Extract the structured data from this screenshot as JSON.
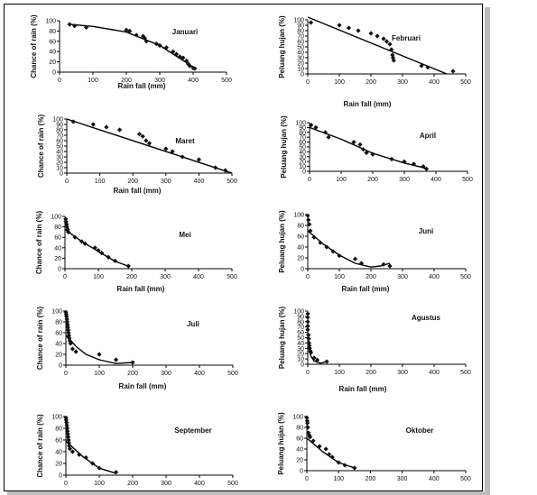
{
  "chart_data": [
    {
      "type": "scatter",
      "month": "Januari",
      "xlabel": "Rain fall (mm)",
      "ylabel": "Chance of rain (%)",
      "xticks": [
        "0",
        "100",
        "200",
        "300",
        "400",
        "500"
      ],
      "yticks": [
        "0",
        "20",
        "40",
        "60",
        "80",
        "100"
      ],
      "xlim": [
        0,
        500
      ],
      "ylim": [
        0,
        100
      ],
      "points": [
        [
          30,
          93
        ],
        [
          45,
          90
        ],
        [
          80,
          87
        ],
        [
          200,
          82
        ],
        [
          210,
          80
        ],
        [
          230,
          72
        ],
        [
          250,
          70
        ],
        [
          255,
          66
        ],
        [
          260,
          60
        ],
        [
          290,
          55
        ],
        [
          300,
          52
        ],
        [
          320,
          48
        ],
        [
          340,
          40
        ],
        [
          350,
          35
        ],
        [
          360,
          30
        ],
        [
          370,
          28
        ],
        [
          380,
          22
        ],
        [
          385,
          16
        ],
        [
          390,
          12
        ],
        [
          400,
          8
        ],
        [
          405,
          7
        ]
      ],
      "trend": [
        [
          30,
          93
        ],
        [
          100,
          89
        ],
        [
          200,
          78
        ],
        [
          300,
          52
        ],
        [
          400,
          10
        ]
      ]
    },
    {
      "type": "scatter",
      "month": "Februari",
      "xlabel": "Rain fall (mm)",
      "ylabel": "Peluang hujan (%)",
      "xticks": [
        "0",
        "100",
        "200",
        "300",
        "400",
        "500"
      ],
      "yticks": [
        "0",
        "10",
        "20",
        "30",
        "40",
        "50",
        "60",
        "70",
        "80",
        "90",
        "100"
      ],
      "xlim": [
        0,
        500
      ],
      "ylim": [
        0,
        100
      ],
      "points": [
        [
          10,
          95
        ],
        [
          100,
          90
        ],
        [
          130,
          85
        ],
        [
          160,
          80
        ],
        [
          200,
          75
        ],
        [
          220,
          70
        ],
        [
          240,
          65
        ],
        [
          250,
          60
        ],
        [
          260,
          55
        ],
        [
          265,
          45
        ],
        [
          268,
          35
        ],
        [
          270,
          30
        ],
        [
          272,
          25
        ],
        [
          360,
          15
        ],
        [
          380,
          12
        ],
        [
          460,
          5
        ]
      ],
      "trend": [
        [
          0,
          105
        ],
        [
          440,
          0
        ]
      ]
    },
    {
      "type": "scatter",
      "month": "Maret",
      "xlabel": "Rain fall (mm)",
      "ylabel": "Chance of rain (%)",
      "xticks": [
        "0",
        "100",
        "200",
        "300",
        "400",
        "500"
      ],
      "yticks": [
        "0",
        "10",
        "20",
        "30",
        "40",
        "50",
        "60",
        "70",
        "80",
        "90",
        "100"
      ],
      "xlim": [
        0,
        500
      ],
      "ylim": [
        0,
        100
      ],
      "points": [
        [
          20,
          95
        ],
        [
          80,
          90
        ],
        [
          120,
          85
        ],
        [
          160,
          80
        ],
        [
          220,
          72
        ],
        [
          230,
          68
        ],
        [
          240,
          60
        ],
        [
          250,
          55
        ],
        [
          300,
          45
        ],
        [
          320,
          40
        ],
        [
          350,
          30
        ],
        [
          400,
          25
        ],
        [
          450,
          10
        ],
        [
          480,
          5
        ]
      ],
      "trend": [
        [
          0,
          100
        ],
        [
          500,
          -5
        ]
      ]
    },
    {
      "type": "scatter",
      "month": "April",
      "xlabel": "",
      "ylabel": "Peluang hujan (%)",
      "xticks": [
        "0",
        "100",
        "200",
        "300",
        "400",
        "500"
      ],
      "yticks": [
        "0",
        "10",
        "20",
        "30",
        "40",
        "50",
        "60",
        "70",
        "80",
        "90",
        "100"
      ],
      "xlim": [
        0,
        500
      ],
      "ylim": [
        0,
        100
      ],
      "points": [
        [
          5,
          95
        ],
        [
          20,
          90
        ],
        [
          50,
          80
        ],
        [
          60,
          70
        ],
        [
          140,
          60
        ],
        [
          160,
          55
        ],
        [
          170,
          45
        ],
        [
          180,
          38
        ],
        [
          200,
          35
        ],
        [
          260,
          25
        ],
        [
          300,
          20
        ],
        [
          330,
          15
        ],
        [
          360,
          10
        ],
        [
          370,
          5
        ]
      ],
      "trend": [
        [
          0,
          90
        ],
        [
          100,
          66
        ],
        [
          200,
          37
        ],
        [
          300,
          17
        ],
        [
          370,
          6
        ]
      ]
    },
    {
      "type": "scatter",
      "month": "Mei",
      "xlabel": "Rain fall (mm)",
      "ylabel": "Chance of rain (%)",
      "xticks": [
        "0",
        "100",
        "200",
        "300",
        "400",
        "500"
      ],
      "yticks": [
        "0",
        "20",
        "40",
        "60",
        "80",
        "100"
      ],
      "xlim": [
        0,
        500
      ],
      "ylim": [
        0,
        100
      ],
      "points": [
        [
          2,
          95
        ],
        [
          3,
          90
        ],
        [
          5,
          85
        ],
        [
          6,
          80
        ],
        [
          8,
          75
        ],
        [
          10,
          70
        ],
        [
          30,
          60
        ],
        [
          50,
          52
        ],
        [
          60,
          48
        ],
        [
          90,
          40
        ],
        [
          100,
          35
        ],
        [
          110,
          30
        ],
        [
          130,
          22
        ],
        [
          150,
          15
        ],
        [
          190,
          5
        ]
      ],
      "trend": [
        [
          0,
          75
        ],
        [
          50,
          52
        ],
        [
          100,
          33
        ],
        [
          150,
          14
        ],
        [
          190,
          5
        ]
      ]
    },
    {
      "type": "scatter",
      "month": "Juni",
      "xlabel": "Rain fall (mm)",
      "ylabel": "Peluang hujan (%)",
      "xticks": [
        "0",
        "100",
        "200",
        "300",
        "400",
        "500"
      ],
      "yticks": [
        "0",
        "20",
        "40",
        "60",
        "80",
        "100"
      ],
      "xlim": [
        0,
        500
      ],
      "ylim": [
        0,
        100
      ],
      "points": [
        [
          0,
          98
        ],
        [
          2,
          90
        ],
        [
          5,
          82
        ],
        [
          8,
          70
        ],
        [
          20,
          58
        ],
        [
          40,
          48
        ],
        [
          60,
          40
        ],
        [
          80,
          32
        ],
        [
          100,
          24
        ],
        [
          150,
          18
        ],
        [
          170,
          10
        ],
        [
          240,
          8
        ],
        [
          260,
          5
        ]
      ],
      "trend": [
        [
          0,
          70
        ],
        [
          50,
          45
        ],
        [
          100,
          25
        ],
        [
          150,
          10
        ],
        [
          200,
          3
        ],
        [
          230,
          5
        ],
        [
          260,
          10
        ]
      ]
    },
    {
      "type": "scatter",
      "month": "Juli",
      "xlabel": "Rain fall (mm)",
      "ylabel": "Chance of rain (%)",
      "xticks": [
        "0",
        "100",
        "200",
        "300",
        "400",
        "500"
      ],
      "yticks": [
        "0",
        "20",
        "40",
        "60",
        "80",
        "100"
      ],
      "xlim": [
        0,
        500
      ],
      "ylim": [
        0,
        100
      ],
      "points": [
        [
          0,
          98
        ],
        [
          1,
          94
        ],
        [
          2,
          90
        ],
        [
          3,
          85
        ],
        [
          4,
          80
        ],
        [
          5,
          75
        ],
        [
          6,
          70
        ],
        [
          7,
          65
        ],
        [
          8,
          60
        ],
        [
          9,
          55
        ],
        [
          10,
          50
        ],
        [
          12,
          45
        ],
        [
          14,
          40
        ],
        [
          20,
          30
        ],
        [
          30,
          25
        ],
        [
          100,
          20
        ],
        [
          150,
          10
        ],
        [
          200,
          5
        ]
      ],
      "trend": [
        [
          0,
          55
        ],
        [
          30,
          35
        ],
        [
          60,
          20
        ],
        [
          100,
          10
        ],
        [
          150,
          3
        ],
        [
          200,
          5
        ]
      ]
    },
    {
      "type": "scatter",
      "month": "Agustus",
      "xlabel": "Rain fall (mm)",
      "ylabel": "Peluang hujan (%)",
      "xticks": [
        "0",
        "100",
        "200",
        "300",
        "400",
        "500"
      ],
      "yticks": [
        "0",
        "10",
        "20",
        "30",
        "40",
        "50",
        "60",
        "70",
        "80",
        "90",
        "100"
      ],
      "xlim": [
        0,
        500
      ],
      "ylim": [
        0,
        100
      ],
      "points": [
        [
          0,
          95
        ],
        [
          0,
          88
        ],
        [
          0,
          80
        ],
        [
          0,
          72
        ],
        [
          0,
          65
        ],
        [
          2,
          55
        ],
        [
          3,
          48
        ],
        [
          4,
          40
        ],
        [
          5,
          35
        ],
        [
          6,
          30
        ],
        [
          8,
          25
        ],
        [
          10,
          22
        ],
        [
          20,
          12
        ],
        [
          30,
          8
        ],
        [
          60,
          5
        ]
      ],
      "trend": [
        [
          0,
          40
        ],
        [
          10,
          15
        ],
        [
          20,
          6
        ],
        [
          40,
          2
        ],
        [
          60,
          5
        ]
      ]
    },
    {
      "type": "scatter",
      "month": "September",
      "xlabel": "",
      "ylabel": "Chance of rain (%)",
      "xticks": [
        "0",
        "100",
        "200",
        "300",
        "400",
        "500"
      ],
      "yticks": [
        "0",
        "20",
        "40",
        "60",
        "80",
        "100"
      ],
      "xlim": [
        0,
        500
      ],
      "ylim": [
        0,
        100
      ],
      "points": [
        [
          0,
          98
        ],
        [
          1,
          94
        ],
        [
          2,
          90
        ],
        [
          3,
          85
        ],
        [
          4,
          80
        ],
        [
          5,
          75
        ],
        [
          6,
          70
        ],
        [
          7,
          65
        ],
        [
          8,
          60
        ],
        [
          9,
          55
        ],
        [
          10,
          50
        ],
        [
          12,
          45
        ],
        [
          20,
          40
        ],
        [
          40,
          35
        ],
        [
          60,
          30
        ],
        [
          80,
          20
        ],
        [
          100,
          12
        ],
        [
          150,
          5
        ]
      ],
      "trend": [
        [
          0,
          58
        ],
        [
          50,
          32
        ],
        [
          100,
          12
        ],
        [
          150,
          3
        ]
      ]
    },
    {
      "type": "scatter",
      "month": "Oktober",
      "xlabel": "",
      "ylabel": "Peluang hujan (%)",
      "xticks": [
        "0",
        "100",
        "200",
        "300",
        "400",
        "500"
      ],
      "yticks": [
        "0",
        "20",
        "40",
        "60",
        "80",
        "100"
      ],
      "xlim": [
        0,
        500
      ],
      "ylim": [
        0,
        100
      ],
      "points": [
        [
          0,
          98
        ],
        [
          1,
          92
        ],
        [
          2,
          88
        ],
        [
          3,
          80
        ],
        [
          5,
          70
        ],
        [
          8,
          65
        ],
        [
          10,
          62
        ],
        [
          20,
          55
        ],
        [
          40,
          45
        ],
        [
          60,
          40
        ],
        [
          70,
          30
        ],
        [
          80,
          25
        ],
        [
          100,
          15
        ],
        [
          120,
          10
        ],
        [
          150,
          5
        ]
      ],
      "trend": [
        [
          0,
          60
        ],
        [
          50,
          35
        ],
        [
          100,
          15
        ],
        [
          150,
          5
        ]
      ]
    }
  ]
}
